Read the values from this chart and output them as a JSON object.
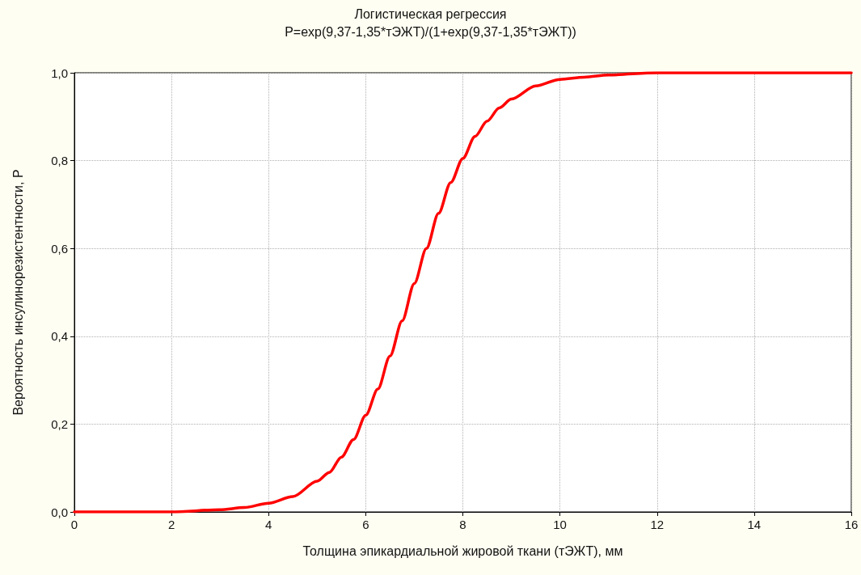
{
  "chart_data": {
    "type": "line",
    "title": "Логистическая регрессия",
    "subtitle": "P=exp(9,37-1,35*тЭЖТ)/(1+exp(9,37-1,35*тЭЖТ))",
    "xlabel": "Толщина эпикардиальной жировой ткани (тЭЖТ), мм",
    "ylabel": "Вероятность инсулинорезистентности, P",
    "series": [
      {
        "color": "#ff0000",
        "x": [
          0,
          1,
          2,
          3,
          3.5,
          4,
          4.5,
          5,
          5.25,
          5.5,
          5.75,
          6,
          6.25,
          6.5,
          6.75,
          7,
          7.25,
          7.5,
          7.75,
          8,
          8.25,
          8.5,
          8.75,
          9,
          9.5,
          10,
          10.5,
          11,
          12,
          14,
          16
        ],
        "values": [
          0,
          0,
          0,
          0.005,
          0.01,
          0.02,
          0.035,
          0.07,
          0.09,
          0.125,
          0.165,
          0.22,
          0.28,
          0.355,
          0.435,
          0.52,
          0.6,
          0.68,
          0.75,
          0.805,
          0.855,
          0.89,
          0.92,
          0.94,
          0.97,
          0.985,
          0.99,
          0.995,
          1,
          1,
          1
        ]
      }
    ],
    "xlim": [
      0,
      16
    ],
    "xticks": [
      0,
      2,
      4,
      6,
      8,
      10,
      12,
      14,
      16
    ],
    "ylim": [
      0,
      1
    ],
    "yticks": [
      {
        "value": 0,
        "label": "0,0"
      },
      {
        "value": 0.2,
        "label": "0,2"
      },
      {
        "value": 0.4,
        "label": "0,4"
      },
      {
        "value": 0.6,
        "label": "0,6"
      },
      {
        "value": 0.8,
        "label": "0,8"
      },
      {
        "value": 1,
        "label": "1,0"
      }
    ],
    "grid": true,
    "marker": "none",
    "line_style": "solid"
  }
}
